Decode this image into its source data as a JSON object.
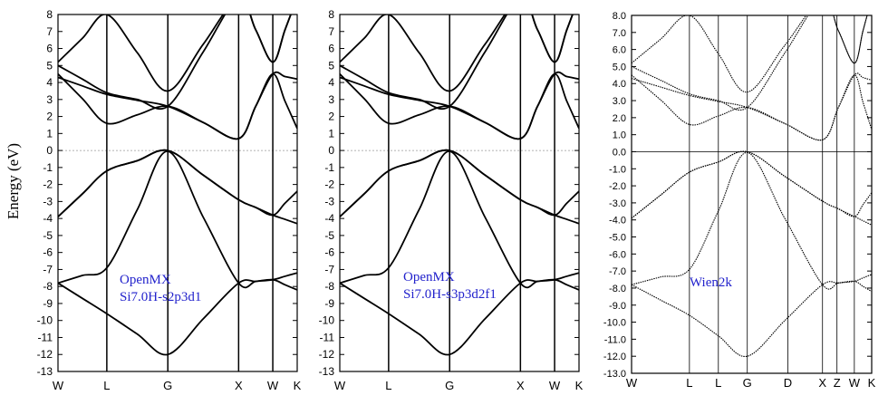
{
  "chart_data": [
    {
      "type": "line",
      "ylabel": "Energy (eV)",
      "ylim": [
        -13,
        8
      ],
      "yticks": [
        8,
        7,
        6,
        5,
        4,
        3,
        2,
        1,
        0,
        -1,
        -2,
        -3,
        -4,
        -5,
        -6,
        -7,
        -8,
        -9,
        -10,
        -11,
        -12,
        -13
      ],
      "ytick_labels": [
        "8",
        "7",
        "6",
        "5",
        "4",
        "3",
        "2",
        "1",
        "0",
        "-1",
        "-2",
        "-3",
        "-4",
        "-5",
        "-6",
        "-7",
        "-8",
        "-9",
        "-10",
        "-11",
        "-12",
        "-13"
      ],
      "kpoints": [
        {
          "label": "W",
          "x": 0
        },
        {
          "label": "L",
          "x": 1.0
        },
        {
          "label": "G",
          "x": 2.25
        },
        {
          "label": "X",
          "x": 3.7
        },
        {
          "label": "W",
          "x": 4.4
        },
        {
          "label": "K",
          "x": 4.9
        }
      ],
      "fermi_level": 0,
      "annotation_lines": [
        "OpenMX",
        "Si7.0H-s2p3d1"
      ],
      "annotation_color": "#2222cc",
      "line_style": "solid",
      "grid": false
    },
    {
      "type": "line",
      "ylabel": "",
      "ylim": [
        -13,
        8
      ],
      "yticks": [
        8,
        7,
        6,
        5,
        4,
        3,
        2,
        1,
        0,
        -1,
        -2,
        -3,
        -4,
        -5,
        -6,
        -7,
        -8,
        -9,
        -10,
        -11,
        -12,
        -13
      ],
      "ytick_labels": [
        "8",
        "7",
        "6",
        "5",
        "4",
        "3",
        "2",
        "1",
        "0",
        "-1",
        "-2",
        "-3",
        "-4",
        "-5",
        "-6",
        "-7",
        "-8",
        "-9",
        "-10",
        "-11",
        "-12",
        "-13"
      ],
      "kpoints": [
        {
          "label": "W",
          "x": 0
        },
        {
          "label": "L",
          "x": 1.0
        },
        {
          "label": "G",
          "x": 2.25
        },
        {
          "label": "X",
          "x": 3.7
        },
        {
          "label": "W",
          "x": 4.4
        },
        {
          "label": "K",
          "x": 4.9
        }
      ],
      "fermi_level": 0,
      "annotation_lines": [
        "OpenMX",
        "Si7.0H-s3p3d2f1"
      ],
      "annotation_color": "#2222cc",
      "line_style": "solid",
      "grid": false
    },
    {
      "type": "line",
      "ylabel": "",
      "ylim": [
        -13,
        8
      ],
      "yticks": [
        8,
        7,
        6,
        5,
        4,
        3,
        2,
        1,
        0,
        -1,
        -2,
        -3,
        -4,
        -5,
        -6,
        -7,
        -8,
        -9,
        -10,
        -11,
        -12,
        -13
      ],
      "ytick_labels": [
        "8.0",
        "7.0",
        "6.0",
        "5.0",
        "4.0",
        "3.0",
        "2.0",
        "1.0",
        "0.0",
        "-1.0",
        "-2.0",
        "-3.0",
        "-4.0",
        "-5.0",
        "-6.0",
        "-7.0",
        "-8.0",
        "-9.0",
        "-10.0",
        "-11.0",
        "-12.0",
        "-13.0"
      ],
      "kpoints": [
        {
          "label": "W",
          "x": 0
        },
        {
          "label": "L",
          "x": 1.0
        },
        {
          "label": "L",
          "x": 1.5
        },
        {
          "label": "G",
          "x": 2.0
        },
        {
          "label": "D",
          "x": 2.7
        },
        {
          "label": "X",
          "x": 3.3
        },
        {
          "label": "Z",
          "x": 3.55
        },
        {
          "label": "W",
          "x": 3.85
        },
        {
          "label": "K",
          "x": 4.15
        }
      ],
      "band_path": {
        "W": 0,
        "L": 1.0,
        "G": 2.0,
        "X": 3.3,
        "W2": 3.85,
        "K": 4.15
      },
      "fermi_level": 0,
      "annotation_lines": [
        "Wien2k"
      ],
      "annotation_color": "#2222cc",
      "line_style": "dotted",
      "grid": false
    }
  ],
  "bands": [
    {
      "name": "b1",
      "values": [
        -7.8,
        -9.6,
        -12.0,
        -7.8,
        -7.6,
        -8.2
      ]
    },
    {
      "name": "b2",
      "values": [
        -7.8,
        -6.9,
        -0.05,
        -7.8,
        -7.6,
        -7.2
      ]
    },
    {
      "name": "b3",
      "values": [
        -3.9,
        -1.2,
        0.0,
        -2.9,
        -3.8,
        -4.3
      ]
    },
    {
      "name": "b4",
      "values": [
        -3.9,
        -1.2,
        0.0,
        -2.9,
        -3.8,
        -2.4
      ]
    },
    {
      "name": "b5",
      "values": [
        4.5,
        1.6,
        2.6,
        0.7,
        4.5,
        1.3
      ]
    },
    {
      "name": "b6",
      "values": [
        4.3,
        3.3,
        2.6,
        0.7,
        4.5,
        4.2
      ]
    },
    {
      "name": "b7",
      "values": [
        5.0,
        3.4,
        2.6,
        9.0,
        5.2,
        9.0
      ]
    },
    {
      "name": "b8",
      "values": [
        5.2,
        8.0,
        3.5,
        9.0,
        5.2,
        9.0
      ]
    }
  ]
}
